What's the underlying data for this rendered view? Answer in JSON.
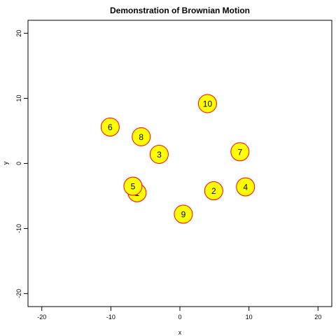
{
  "chart_data": {
    "type": "scatter",
    "title": "Demonstration of Brownian Motion",
    "xlabel": "x",
    "ylabel": "y",
    "xlim": [
      -22,
      22
    ],
    "ylim": [
      -22,
      22
    ],
    "xticks": [
      -20,
      -10,
      0,
      10,
      20
    ],
    "yticks": [
      -20,
      -10,
      0,
      10,
      20
    ],
    "grid": false,
    "marker_fill": "#ffff00",
    "marker_stroke": "#ff0000",
    "points": [
      {
        "label": "1",
        "x": -6.2,
        "y": -4.5
      },
      {
        "label": "2",
        "x": 4.9,
        "y": -4.2
      },
      {
        "label": "3",
        "x": -3.0,
        "y": 1.4
      },
      {
        "label": "4",
        "x": 9.5,
        "y": -3.6
      },
      {
        "label": "5",
        "x": -6.8,
        "y": -3.5
      },
      {
        "label": "6",
        "x": -10.1,
        "y": 5.6
      },
      {
        "label": "7",
        "x": 8.7,
        "y": 1.8
      },
      {
        "label": "8",
        "x": -5.6,
        "y": 4.1
      },
      {
        "label": "9",
        "x": 0.5,
        "y": -7.8
      },
      {
        "label": "10",
        "x": 4.0,
        "y": 9.2
      }
    ]
  }
}
